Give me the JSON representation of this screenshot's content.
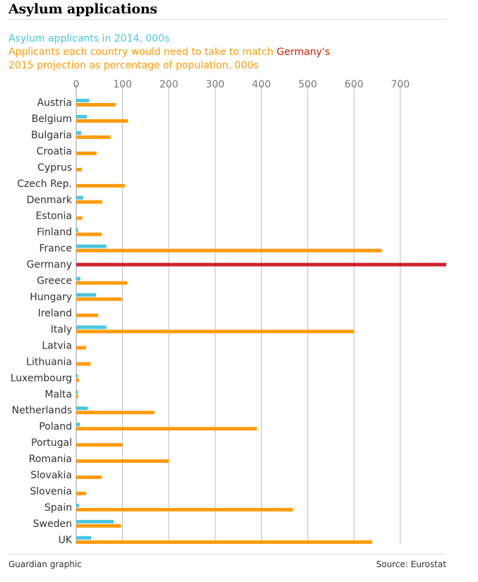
{
  "title": "Asylum applications",
  "legend": {
    "series1": "Asylum applicants in 2014, 000s",
    "series2_pre": "Applicants each country would need to take to match ",
    "series2_highlight": "Germany's",
    "series2_post": "2015 projection as percentage of population, 000s"
  },
  "footer": {
    "credit": "Guardian graphic",
    "source": "Source: Eurostat"
  },
  "colors": {
    "applicants": "#4bc6df",
    "needed": "#ff9b0b",
    "germany": "#d0202a",
    "grid": "#bbbbbb",
    "tick": "#767676",
    "label": "#333333"
  },
  "chart_data": {
    "type": "bar",
    "orientation": "horizontal",
    "xlim": [
      0,
      800
    ],
    "xticks": [
      0,
      100,
      200,
      300,
      400,
      500,
      600,
      700
    ],
    "categories": [
      "Austria",
      "Belgium",
      "Bulgaria",
      "Croatia",
      "Cyprus",
      "Czech Rep.",
      "Denmark",
      "Estonia",
      "Finland",
      "France",
      "Germany",
      "Greece",
      "Hungary",
      "Ireland",
      "Italy",
      "Latvia",
      "Lithuania",
      "Luxembourg",
      "Malta",
      "Netherlands",
      "Poland",
      "Portugal",
      "Romania",
      "Slovakia",
      "Slovenia",
      "Spain",
      "Sweden",
      "UK"
    ],
    "series": [
      {
        "name": "Asylum applicants in 2014, 000s",
        "values": [
          28,
          23,
          11,
          0,
          0,
          0,
          15,
          0,
          4,
          65,
          0,
          9,
          43,
          0,
          65,
          0,
          0,
          1,
          1,
          25,
          8,
          0,
          0,
          0,
          0,
          6,
          81,
          32
        ]
      },
      {
        "name": "Applicants each country would need to take to match Germany's 2015 projection as percentage of population, 000s",
        "values": [
          85,
          112,
          74,
          44,
          12,
          105,
          56,
          13,
          55,
          660,
          800,
          110,
          99,
          47,
          600,
          21,
          31,
          6,
          4,
          169,
          390,
          100,
          200,
          55,
          21,
          468,
          97,
          639
        ]
      }
    ],
    "highlight": "Germany"
  }
}
